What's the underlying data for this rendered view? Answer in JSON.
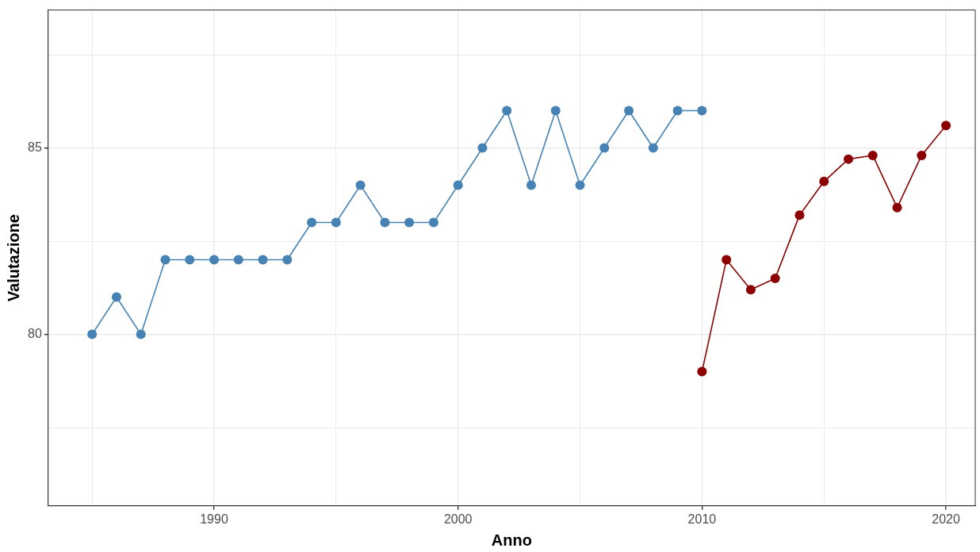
{
  "chart_data": {
    "type": "line",
    "xlabel": "Anno",
    "ylabel": "Valutazione",
    "series": [
      {
        "color": "#4682b4",
        "x": [
          1985,
          1986,
          1987,
          1988,
          1989,
          1990,
          1991,
          1992,
          1993,
          1994,
          1995,
          1996,
          1997,
          1998,
          1999,
          2000,
          2001,
          2002,
          2003,
          2004,
          2005,
          2006,
          2007,
          2008,
          2009,
          2010
        ],
        "values": [
          80,
          81,
          80,
          82,
          82,
          82,
          82,
          82,
          82,
          83,
          83,
          84,
          83,
          83,
          83,
          84,
          85,
          86,
          84,
          86,
          84,
          85,
          86,
          85,
          86,
          86
        ]
      },
      {
        "color": "#8b0000",
        "x": [
          2010,
          2011,
          2012,
          2013,
          2014,
          2015,
          2016,
          2017,
          2018,
          2019,
          2020
        ],
        "values": [
          79.0,
          82.0,
          81.2,
          81.5,
          83.2,
          84.1,
          84.7,
          84.8,
          83.4,
          84.8,
          85.6
        ]
      }
    ],
    "xlim": [
      1983.2,
      2021.2
    ],
    "xticks": [
      {
        "value": 1985,
        "label": null
      },
      1990,
      {
        "value": 1995,
        "label": null
      },
      2000,
      {
        "value": 2005,
        "label": null
      },
      2010,
      {
        "value": 2015,
        "label": null
      },
      2020
    ],
    "ylim": [
      75.4,
      88.7
    ],
    "yticks": [
      {
        "value": 77.5,
        "label": null
      },
      80,
      {
        "value": 82.5,
        "label": null
      },
      85,
      {
        "value": 87.5,
        "label": null
      }
    ],
    "grid": true,
    "legend": false,
    "marker": "circle",
    "line_style": "solid"
  }
}
